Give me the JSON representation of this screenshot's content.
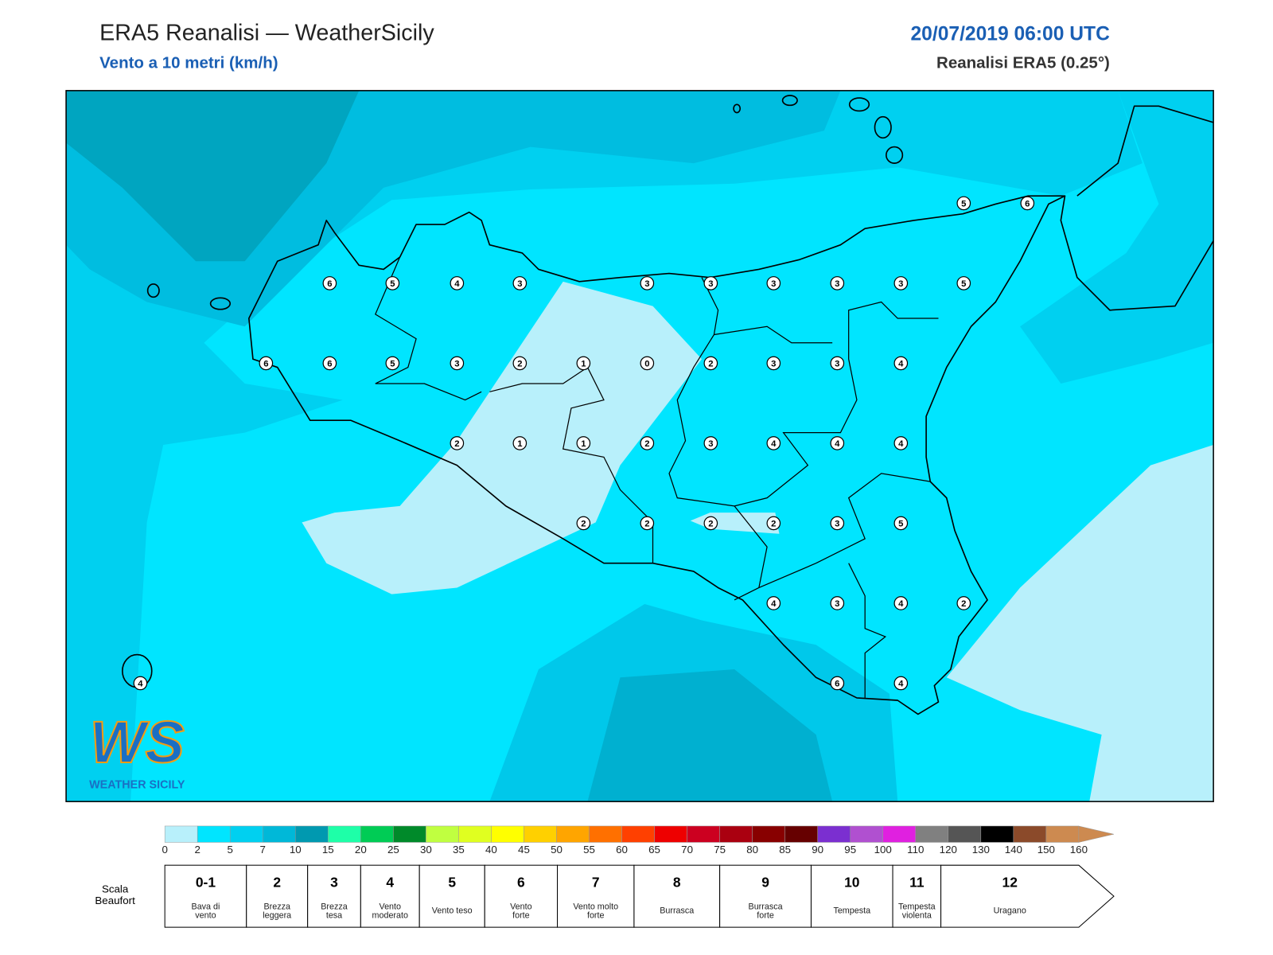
{
  "header": {
    "title": "ERA5 Reanalisi — WeatherSicily",
    "subtitle": "Vento a 10 metri (km/h)",
    "datetime": "20/07/2019 06:00 UTC",
    "source": "Reanalisi ERA5 (0.25°)"
  },
  "map": {
    "station_values": [
      6,
      5,
      4,
      3,
      3,
      3,
      3,
      3,
      3,
      5,
      5,
      6,
      6,
      6,
      5,
      3,
      2,
      1,
      0,
      2,
      3,
      3,
      4,
      2,
      1,
      1,
      2,
      3,
      4,
      4,
      4,
      2,
      2,
      2,
      2,
      3,
      5,
      4,
      3,
      4,
      2,
      4,
      6,
      4
    ]
  },
  "logo": {
    "mark": "WS",
    "text": "WEATHER SICILY"
  },
  "colorbar": {
    "ticks": [
      0,
      2,
      5,
      7,
      10,
      15,
      20,
      25,
      30,
      35,
      40,
      45,
      50,
      55,
      60,
      65,
      70,
      75,
      80,
      85,
      90,
      95,
      100,
      110,
      120,
      130,
      140,
      150,
      160
    ],
    "colors": [
      "#b8f0fb",
      "#00e5ff",
      "#00d0f0",
      "#00b8d8",
      "#0099b0",
      "#1effa8",
      "#00cc55",
      "#008a2a",
      "#c0ff40",
      "#e0ff20",
      "#ffff00",
      "#ffd000",
      "#ffa500",
      "#ff7000",
      "#ff4000",
      "#ee0000",
      "#cc0020",
      "#aa0010",
      "#880000",
      "#660000",
      "#7b2fd0",
      "#b050d0",
      "#e020e0",
      "#808080",
      "#555555",
      "#000000",
      "#8b4a2a",
      "#cd8a50"
    ]
  },
  "beaufort": {
    "label": [
      "Scala",
      "Beaufort"
    ],
    "levels": [
      {
        "force": "0-1",
        "description": [
          "Bava di",
          "vento"
        ]
      },
      {
        "force": "2",
        "description": [
          "Brezza",
          "leggera"
        ]
      },
      {
        "force": "3",
        "description": [
          "Brezza",
          "tesa"
        ]
      },
      {
        "force": "4",
        "description": [
          "Vento",
          "moderato"
        ]
      },
      {
        "force": "5",
        "description": [
          "Vento teso"
        ]
      },
      {
        "force": "6",
        "description": [
          "Vento",
          "forte"
        ]
      },
      {
        "force": "7",
        "description": [
          "Vento molto",
          "forte"
        ]
      },
      {
        "force": "8",
        "description": [
          "Burrasca"
        ]
      },
      {
        "force": "9",
        "description": [
          "Burrasca",
          "forte"
        ]
      },
      {
        "force": "10",
        "description": [
          "Tempesta"
        ]
      },
      {
        "force": "11",
        "description": [
          "Tempesta",
          "violenta"
        ]
      },
      {
        "force": "12",
        "description": [
          "Uragano"
        ]
      }
    ]
  }
}
